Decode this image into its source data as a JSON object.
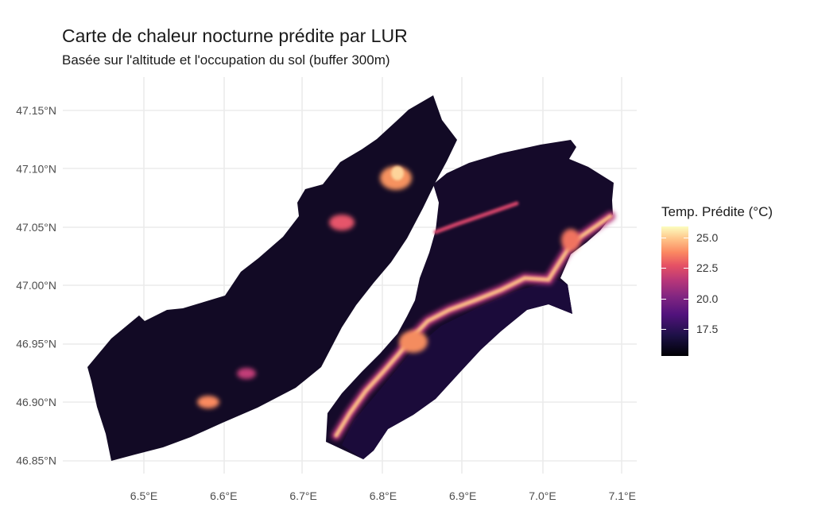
{
  "title": "Carte de chaleur nocturne prédite par LUR",
  "subtitle": "Basée sur l'altitude et l'occupation du sol (buffer 300m)",
  "map": {
    "x_ticks": [
      "6.5°E",
      "6.6°E",
      "6.7°E",
      "6.8°E",
      "6.9°E",
      "7.0°E",
      "7.1°E"
    ],
    "y_ticks": [
      "47.15°N",
      "47.10°N",
      "47.05°N",
      "47.00°N",
      "46.95°N",
      "46.90°N",
      "46.85°N"
    ],
    "x_values": [
      6.5,
      6.6,
      6.7,
      6.8,
      6.9,
      7.0,
      7.1
    ],
    "y_values": [
      47.15,
      47.1,
      47.05,
      47.0,
      46.95,
      46.9,
      46.85
    ],
    "colormap": "magma"
  },
  "legend": {
    "title": "Temp. Prédite (°C)",
    "labels": [
      "25.0",
      "22.5",
      "20.0",
      "17.5"
    ],
    "values": [
      25.0,
      22.5,
      20.0,
      17.5
    ],
    "range": [
      15.3,
      25.9
    ]
  }
}
